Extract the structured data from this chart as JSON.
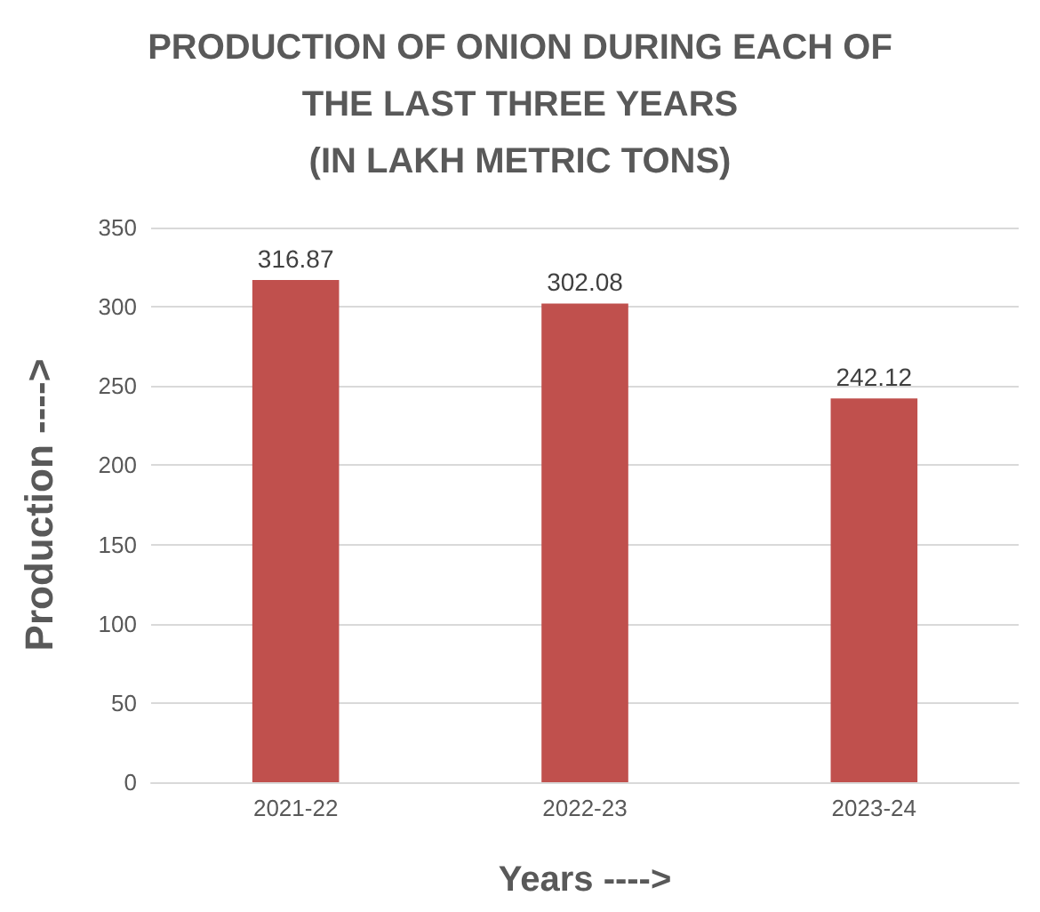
{
  "chart_data": {
    "type": "bar",
    "title": "PRODUCTION OF ONION DURING EACH OF\nTHE LAST THREE YEARS\n(IN LAKH METRIC TONS)",
    "xlabel": "Years ---->",
    "ylabel": "Production ---->",
    "categories": [
      "2021-22",
      "2022-23",
      "2023-24"
    ],
    "values": [
      316.87,
      302.08,
      242.12
    ],
    "color": "#c0504d",
    "ylim": [
      0,
      350
    ],
    "yticks": [
      0,
      50,
      100,
      150,
      200,
      250,
      300,
      350
    ],
    "grid": "y",
    "data_labels": true
  }
}
